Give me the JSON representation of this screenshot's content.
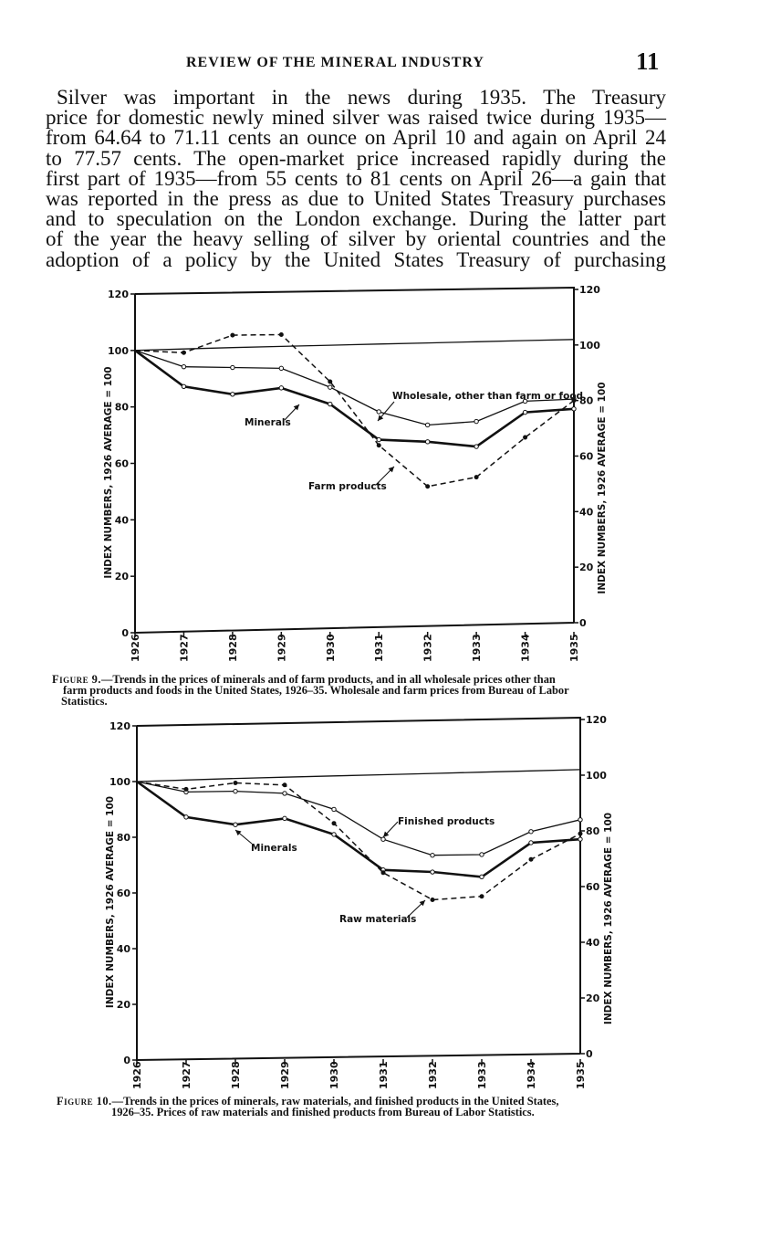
{
  "header": {
    "running_head": "REVIEW OF THE MINERAL INDUSTRY",
    "page_number": "11"
  },
  "body_lines": [
    "Silver was important in the news during 1935. The Treasury",
    "price for domestic newly mined silver was raised twice during 1935—",
    "from 64.64 to 71.11 cents an ounce on April 10 and again on April 24",
    "to 77.57 cents. The open-market price increased rapidly during the",
    "first part of 1935—from 55 cents to 81 cents on April 26—a gain that",
    "was reported in the press as due to United States Treasury purchases",
    "and to speculation on the London exchange. During the latter part",
    "of the year the heavy selling of silver by oriental countries and the",
    "adoption of a policy by the United States Treasury of purchasing"
  ],
  "figure9": {
    "caption_label": "Figure 9.",
    "caption_text": "—Trends in the prices of minerals and of farm products, and in all wholesale prices other than",
    "caption_line2": "farm products and foods in the United States, 1926–35. Wholesale and farm prices from Bureau of Labor",
    "caption_line3": "Statistics."
  },
  "figure10": {
    "caption_label": "Figure 10.",
    "caption_text": "—Trends in the prices of minerals, raw materials, and finished products in the United States,",
    "caption_line2": "1926–35. Prices of raw materials and finished products from Bureau of Labor Statistics."
  },
  "chart_data": [
    {
      "type": "line",
      "x": [
        "1926",
        "1927",
        "1928",
        "1929",
        "1930",
        "1931",
        "1932",
        "1933",
        "1934",
        "1935"
      ],
      "ylabel": "INDEX NUMBERS, 1926 AVERAGE = 100",
      "ylim": [
        0,
        120
      ],
      "yticks": [
        "0",
        "20",
        "40",
        "60",
        "80",
        "100",
        "120"
      ],
      "series": [
        {
          "name": "Minerals",
          "values": [
            100,
            87,
            84,
            86,
            80,
            67,
            66,
            64,
            76,
            77
          ],
          "style": "solid-bold"
        },
        {
          "name": "Wholesale, other than farm or food",
          "values": [
            100,
            94,
            93.5,
            93,
            86,
            77,
            72,
            73,
            80,
            80.5
          ],
          "style": "solid-thin-markers"
        },
        {
          "name": "Farm products",
          "values": [
            100,
            99,
            105,
            105,
            88,
            65,
            50,
            53,
            67,
            80
          ],
          "style": "dashed-markers"
        },
        {
          "name": "",
          "values": [
            100,
            100.3,
            100.6,
            100.8,
            101,
            101.2,
            101.4,
            101.6,
            101.8,
            102
          ],
          "style": "reference-line"
        }
      ]
    },
    {
      "type": "line",
      "x": [
        "1926",
        "1927",
        "1928",
        "1929",
        "1930",
        "1931",
        "1932",
        "1933",
        "1934",
        "1935"
      ],
      "ylabel": "INDEX NUMBERS, 1926 AVERAGE = 100",
      "ylim": [
        0,
        120
      ],
      "yticks": [
        "0",
        "20",
        "40",
        "60",
        "80",
        "100",
        "120"
      ],
      "series": [
        {
          "name": "Minerals",
          "values": [
            100,
            87,
            84,
            86,
            80,
            67,
            66,
            64,
            76,
            77
          ],
          "style": "solid-bold"
        },
        {
          "name": "Finished products",
          "values": [
            100,
            96,
            96,
            95,
            89,
            78,
            72,
            72,
            80,
            84
          ],
          "style": "solid-thin-markers"
        },
        {
          "name": "Raw materials",
          "values": [
            100,
            97,
            99,
            98,
            84,
            66,
            56,
            57,
            70,
            79
          ],
          "style": "dashed-markers"
        },
        {
          "name": "",
          "values": [
            100,
            100.3,
            100.6,
            100.8,
            101,
            101.2,
            101.4,
            101.6,
            101.8,
            102
          ],
          "style": "reference-line"
        }
      ]
    }
  ],
  "colors": {
    "ink": "#111111",
    "paper": "#ffffff"
  }
}
